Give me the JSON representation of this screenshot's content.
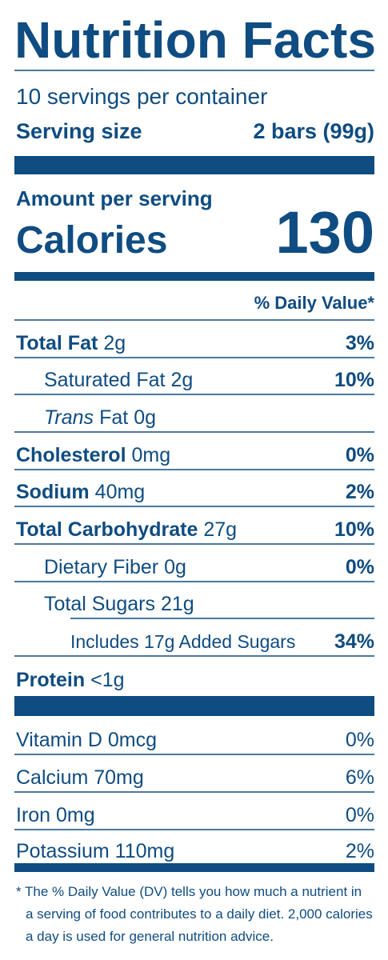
{
  "title": "Nutrition Facts",
  "servings": "10 servings per container",
  "serving_size": {
    "label": "Serving size",
    "value": "2 bars (99g)"
  },
  "amount_per_serving": "Amount per serving",
  "calories": {
    "label": "Calories",
    "value": "130"
  },
  "daily_value_header": "% Daily Value*",
  "nutrients": [
    {
      "name": "Total Fat",
      "amount": "2g",
      "dv": "3%"
    },
    {
      "name": "Saturated Fat",
      "amount": "2g",
      "dv": "10%"
    },
    {
      "name_italic": "Trans",
      "name": "Fat",
      "amount": "0g"
    },
    {
      "name": "Cholesterol",
      "amount": "0mg",
      "dv": "0%"
    },
    {
      "name": "Sodium",
      "amount": "40mg",
      "dv": "2%"
    },
    {
      "name": "Total Carbohydrate",
      "amount": "27g",
      "dv": "10%"
    },
    {
      "name": "Dietary Fiber",
      "amount": "0g",
      "dv": "0%"
    },
    {
      "name": "Total Sugars",
      "amount": "21g"
    },
    {
      "name": "Includes 17g Added Sugars",
      "dv": "34%"
    },
    {
      "name": "Protein",
      "amount": "<1g"
    }
  ],
  "vitamins": [
    {
      "name": "Vitamin D 0mcg",
      "dv": "0%"
    },
    {
      "name": "Calcium 70mg",
      "dv": "6%"
    },
    {
      "name": "Iron 0mg",
      "dv": "0%"
    },
    {
      "name": "Potassium 110mg",
      "dv": "2%"
    }
  ],
  "footnote": [
    "* The % Daily Value (DV) tells you how much a nutrient in",
    "a serving of food contributes to a daily diet. 2,000 calories",
    "a day is used for general nutrition advice."
  ]
}
